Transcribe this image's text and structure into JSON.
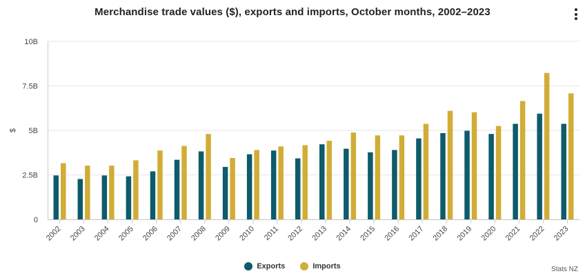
{
  "chart_data": {
    "type": "bar",
    "title": "Merchandise trade values ($), exports and imports, October months, 2002–2023",
    "xlabel": "",
    "ylabel": "$",
    "ylim": [
      0,
      10
    ],
    "yticks": [
      0,
      2.5,
      5,
      7.5,
      10
    ],
    "ytick_labels": [
      "0",
      "2.5B",
      "5B",
      "7.5B",
      "10B"
    ],
    "grid": true,
    "legend_position": "bottom-center",
    "categories": [
      "2002",
      "2003",
      "2004",
      "2005",
      "2006",
      "2007",
      "2008",
      "2009",
      "2010",
      "2011",
      "2012",
      "2013",
      "2014",
      "2015",
      "2016",
      "2017",
      "2018",
      "2019",
      "2020",
      "2021",
      "2022",
      "2023"
    ],
    "series": [
      {
        "name": "Exports",
        "color": "#0d5b6b",
        "values": [
          2.47,
          2.27,
          2.47,
          2.42,
          2.7,
          3.35,
          3.82,
          2.95,
          3.66,
          3.87,
          3.43,
          4.22,
          3.97,
          3.77,
          3.9,
          4.55,
          4.85,
          4.98,
          4.8,
          5.37,
          5.94,
          5.37
        ]
      },
      {
        "name": "Imports",
        "color": "#d1ad37",
        "values": [
          3.16,
          3.02,
          3.02,
          3.32,
          3.87,
          4.13,
          4.8,
          3.45,
          3.9,
          4.1,
          4.17,
          4.42,
          4.88,
          4.72,
          4.72,
          5.37,
          6.1,
          6.02,
          5.25,
          6.65,
          8.23,
          7.08
        ]
      }
    ]
  },
  "menu": {
    "icon": "more-vertical-icon"
  },
  "credits": "Stats NZ"
}
